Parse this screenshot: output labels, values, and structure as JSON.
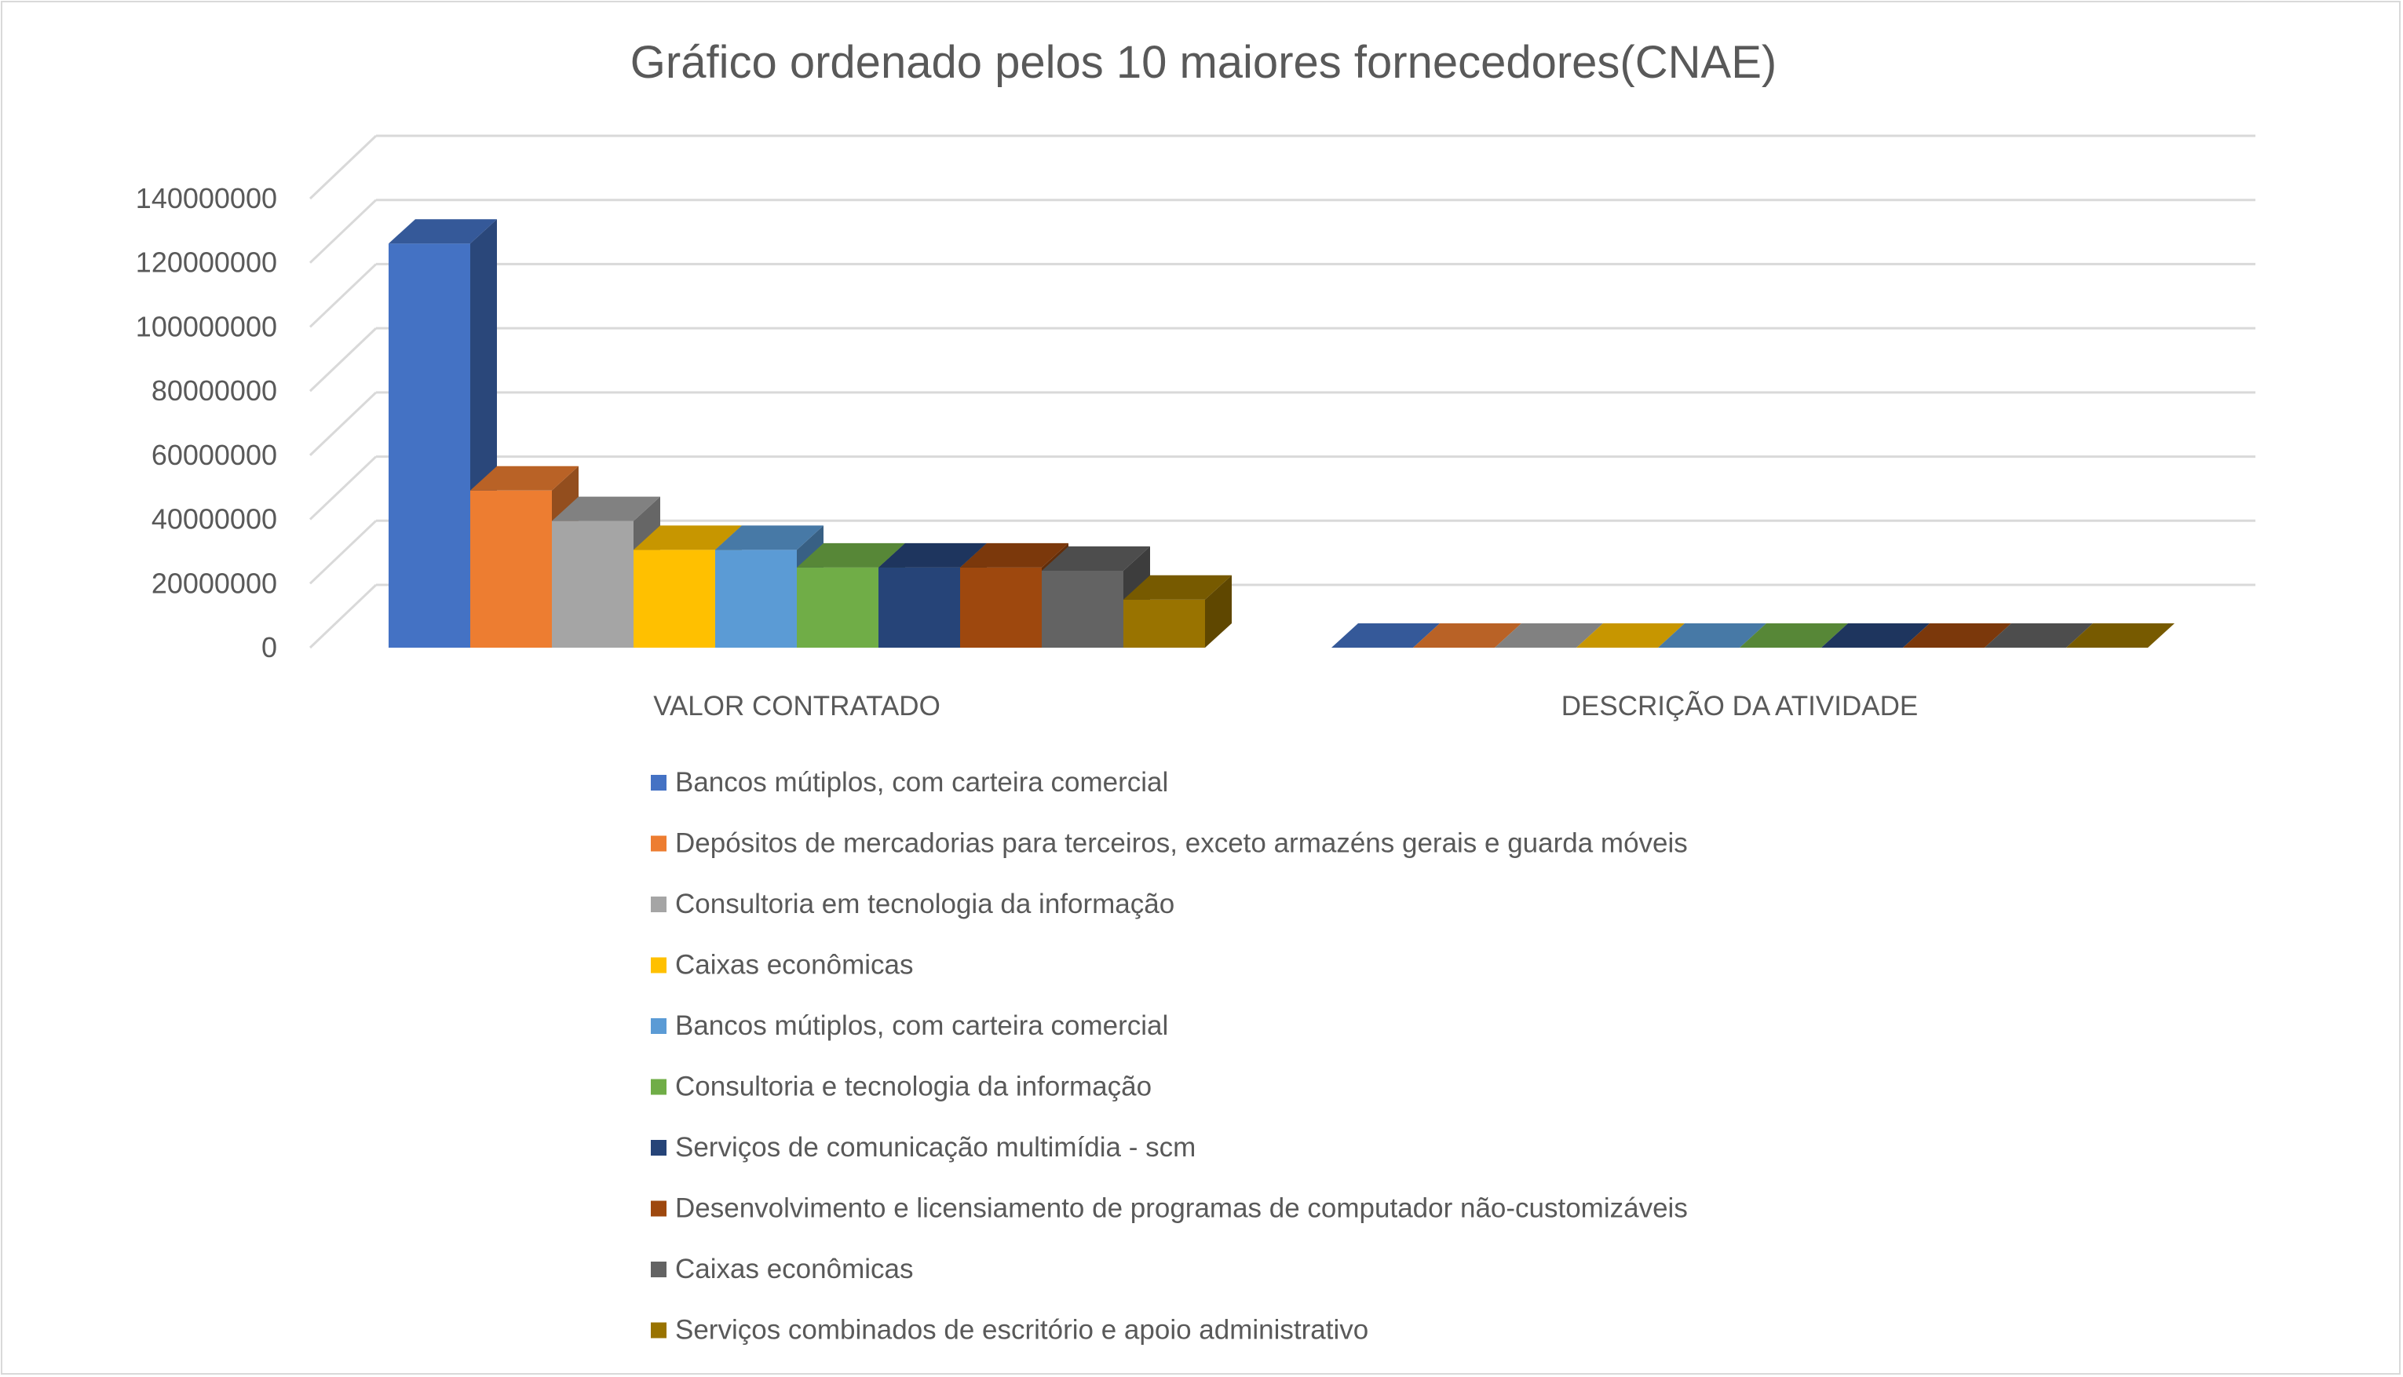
{
  "chart_data": {
    "type": "bar",
    "title": "Gráfico ordenado pelos 10 maiores fornecedores(CNAE)",
    "xlabel": "",
    "ylabel": "",
    "ylim": [
      0,
      140000000
    ],
    "yticks": [
      "0",
      "20000000",
      "40000000",
      "60000000",
      "80000000",
      "100000000",
      "120000000",
      "140000000"
    ],
    "categories": [
      "VALOR CONTRATADO",
      "DESCRIÇÃO DA ATIVIDADE"
    ],
    "grid": true,
    "legend_position": "bottom",
    "series": [
      {
        "name": "Bancos mútiplos, com carteira comercial",
        "color": "#4472C4",
        "values": [
          126000000,
          0
        ]
      },
      {
        "name": "Depósitos de mercadorias para terceiros, exceto armazéns gerais e guarda móveis",
        "color": "#ED7D31",
        "values": [
          49000000,
          0
        ]
      },
      {
        "name": "Consultoria em tecnologia da informação",
        "color": "#A5A5A5",
        "values": [
          39500000,
          0
        ]
      },
      {
        "name": "Caixas econômicas",
        "color": "#FFC000",
        "values": [
          30500000,
          0
        ]
      },
      {
        "name": "Bancos mútiplos, com carteira comercial",
        "color": "#5B9BD5",
        "values": [
          30500000,
          0
        ]
      },
      {
        "name": "Consultoria e tecnologia da informação",
        "color": "#70AD47",
        "values": [
          25000000,
          0
        ]
      },
      {
        "name": "Serviços de comunicação multimídia - scm",
        "color": "#264478",
        "values": [
          25000000,
          0
        ]
      },
      {
        "name": "Desenvolvimento e licensiamento de programas de computador não-customizáveis",
        "color": "#9E480E",
        "values": [
          25000000,
          0
        ]
      },
      {
        "name": "Caixas econômicas",
        "color": "#636363",
        "values": [
          24000000,
          0
        ]
      },
      {
        "name": "Serviços combinados de escritório e apoio administrativo",
        "color": "#997300",
        "values": [
          15000000,
          0
        ]
      }
    ]
  }
}
